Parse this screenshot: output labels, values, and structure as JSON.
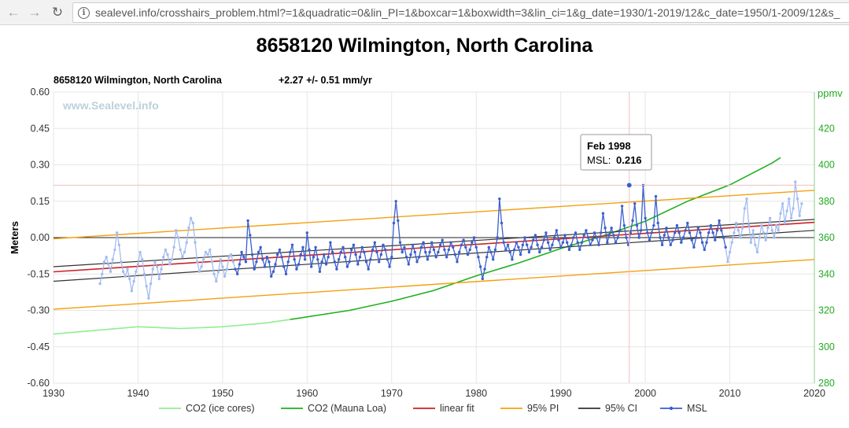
{
  "browser": {
    "back_glyph": "←",
    "forward_glyph": "→",
    "reload_glyph": "↻",
    "info_glyph": "i",
    "url": "sealevel.info/crosshairs_problem.html?=1&quadratic=0&lin_PI=1&boxcar=1&boxwidth=3&lin_ci=1&g_date=1930/1-2019/12&c_date=1950/1-2009/12&s_"
  },
  "page": {
    "title": "8658120 Wilmington, North Carolina"
  },
  "chart_data": {
    "type": "line",
    "title": "8658120 Wilmington, North Carolina",
    "subtitle": "+2.27 +/- 0.51 mm/yr",
    "watermark": "www.Sealevel.info",
    "xlabel": "",
    "ylabel": "Meters",
    "y2label": "ppmv",
    "xlim": [
      1930,
      2020
    ],
    "ylim": [
      -0.6,
      0.6
    ],
    "y2lim": [
      280,
      440
    ],
    "xticks": [
      "1930",
      "1940",
      "1950",
      "1960",
      "1970",
      "1980",
      "1990",
      "2000",
      "2010",
      "2020"
    ],
    "yticks": [
      "0.60",
      "0.45",
      "0.30",
      "0.15",
      "0.00",
      "-0.15",
      "-0.30",
      "-0.45",
      "-0.60"
    ],
    "y2ticks": [
      "420",
      "400",
      "380",
      "360",
      "340",
      "320",
      "300",
      "280"
    ],
    "grid": true,
    "legend_position": "bottom",
    "legend": [
      "CO2 (ice cores)",
      "CO2 (Mauna Loa)",
      "linear fit",
      "95% PI",
      "95% CI",
      "MSL"
    ],
    "colors": {
      "co2_ice": "#90ee90",
      "co2_mlo": "#1fb01f",
      "linear_fit": "#cc2222",
      "pi": "#f5a010",
      "ci": "#333333",
      "msl": "#3a5fcd",
      "msl_light": "#a4bcf0",
      "y2_axis": "#22aa22"
    },
    "series": [
      {
        "name": "CO2 (ice cores)",
        "axis": "y2",
        "x": [
          1930,
          1935,
          1940,
          1945,
          1950,
          1955,
          1958
        ],
        "values": [
          307,
          309,
          311,
          310,
          311,
          313,
          315
        ]
      },
      {
        "name": "CO2 (Mauna Loa)",
        "axis": "y2",
        "x": [
          1958,
          1965,
          1970,
          1975,
          1980,
          1985,
          1990,
          1995,
          2000,
          2005,
          2010,
          2015,
          2016
        ],
        "values": [
          315,
          320,
          325,
          331,
          339,
          346,
          354,
          361,
          369,
          380,
          389,
          401,
          404
        ]
      },
      {
        "name": "linear fit",
        "x": [
          1930,
          2020
        ],
        "values": [
          -0.141,
          0.063
        ]
      },
      {
        "name": "95% PI",
        "upper": [
          -0.005,
          0.195
        ],
        "lower": [
          -0.295,
          -0.09
        ],
        "x": [
          1930,
          2020
        ]
      },
      {
        "name": "95% CI",
        "upper": [
          -0.12,
          0.075
        ],
        "lower": [
          -0.18,
          0.03
        ],
        "x": [
          1930,
          2020
        ]
      },
      {
        "name": "MSL",
        "x_start": 1935.5,
        "x_step": 0.25,
        "values": [
          -0.19,
          -0.15,
          -0.1,
          -0.08,
          -0.11,
          -0.14,
          -0.09,
          -0.05,
          0.02,
          -0.03,
          -0.1,
          -0.14,
          -0.16,
          -0.13,
          -0.17,
          -0.22,
          -0.18,
          -0.14,
          -0.11,
          -0.06,
          -0.09,
          -0.15,
          -0.2,
          -0.25,
          -0.19,
          -0.13,
          -0.1,
          -0.12,
          -0.17,
          -0.13,
          -0.08,
          -0.05,
          -0.07,
          -0.11,
          -0.09,
          -0.04,
          0.03,
          0.0,
          -0.05,
          -0.08,
          -0.06,
          -0.02,
          0.04,
          0.08,
          0.06,
          -0.02,
          -0.1,
          -0.14,
          -0.12,
          -0.09,
          -0.06,
          -0.07,
          -0.05,
          -0.1,
          -0.15,
          -0.18,
          -0.14,
          -0.09,
          -0.12,
          -0.16,
          -0.13,
          -0.08,
          -0.07,
          -0.1,
          -0.13,
          -0.15,
          -0.11,
          -0.06,
          -0.08,
          -0.1,
          0.07,
          0.01,
          -0.07,
          -0.13,
          -0.1,
          -0.06,
          -0.04,
          -0.09,
          -0.12,
          -0.08,
          -0.1,
          -0.16,
          -0.14,
          -0.11,
          -0.07,
          -0.05,
          -0.08,
          -0.12,
          -0.15,
          -0.1,
          -0.06,
          -0.03,
          -0.09,
          -0.13,
          -0.11,
          -0.07,
          -0.04,
          -0.09,
          0.02,
          -0.05,
          -0.12,
          -0.08,
          -0.04,
          -0.09,
          -0.14,
          -0.1,
          -0.07,
          -0.11,
          -0.08,
          -0.02,
          -0.06,
          -0.1,
          -0.13,
          -0.09,
          -0.06,
          -0.04,
          -0.08,
          -0.12,
          -0.1,
          -0.05,
          -0.03,
          -0.07,
          -0.11,
          -0.08,
          -0.04,
          -0.06,
          -0.1,
          -0.13,
          -0.09,
          -0.05,
          -0.02,
          -0.06,
          -0.1,
          -0.07,
          -0.03,
          -0.05,
          -0.09,
          -0.12,
          -0.08,
          0.06,
          0.15,
          0.07,
          -0.02,
          -0.06,
          -0.04,
          -0.08,
          -0.11,
          -0.07,
          -0.03,
          -0.06,
          -0.1,
          -0.08,
          -0.04,
          -0.02,
          -0.06,
          -0.09,
          -0.06,
          -0.02,
          -0.05,
          -0.08,
          -0.06,
          -0.03,
          -0.01,
          -0.05,
          -0.08,
          -0.05,
          -0.02,
          -0.04,
          -0.07,
          -0.1,
          -0.06,
          -0.03,
          -0.01,
          -0.04,
          -0.07,
          -0.05,
          -0.02,
          0.0,
          -0.04,
          -0.08,
          -0.12,
          -0.17,
          -0.13,
          -0.08,
          -0.04,
          -0.06,
          -0.09,
          -0.05,
          0.0,
          0.16,
          0.06,
          -0.02,
          -0.05,
          -0.03,
          -0.06,
          -0.09,
          -0.05,
          -0.02,
          -0.04,
          -0.07,
          -0.03,
          0.0,
          -0.03,
          -0.06,
          -0.04,
          -0.01,
          0.01,
          -0.03,
          -0.06,
          -0.04,
          -0.01,
          0.02,
          -0.02,
          -0.05,
          -0.03,
          0.0,
          0.03,
          -0.01,
          -0.04,
          -0.02,
          0.01,
          -0.02,
          -0.05,
          -0.03,
          0.0,
          0.02,
          -0.02,
          -0.05,
          -0.02,
          0.01,
          0.03,
          0.0,
          -0.03,
          -0.01,
          0.02,
          0.0,
          -0.03,
          0.02,
          0.1,
          0.04,
          -0.02,
          0.01,
          0.04,
          0.01,
          -0.02,
          0.0,
          0.03,
          0.13,
          0.05,
          0.0,
          -0.03,
          0.02,
          0.07,
          0.14,
          0.05,
          0.0,
          0.03,
          0.216,
          0.08,
          0.02,
          -0.01,
          0.02,
          0.05,
          0.17,
          0.06,
          0.0,
          -0.03,
          0.01,
          0.04,
          0.0,
          -0.03,
          -0.01,
          0.02,
          0.05,
          0.02,
          -0.02,
          0.0,
          0.03,
          0.06,
          0.02,
          -0.01,
          -0.04,
          0.0,
          0.04,
          0.02,
          -0.02,
          -0.05,
          -0.02,
          0.02,
          0.05,
          0.02,
          -0.01,
          0.03,
          0.07,
          0.03,
          0.0,
          -0.04,
          -0.1,
          -0.06,
          -0.02,
          0.02,
          0.06,
          0.03,
          0.0,
          0.04,
          0.12,
          0.16,
          0.05,
          -0.02,
          0.03,
          -0.03,
          -0.06,
          0.0,
          0.05,
          0.02,
          -0.01,
          0.04,
          0.08,
          0.03,
          0.0,
          0.05,
          0.03,
          0.1,
          0.14,
          0.06,
          0.11,
          0.16,
          0.08,
          0.12,
          0.23,
          0.16,
          0.09,
          0.14
        ],
        "dark_range": [
          1951.5,
          2009.5
        ]
      }
    ],
    "tooltip": {
      "title": "Feb 1998",
      "label": "MSL:",
      "value": "0.216",
      "x": 1998.1,
      "y": 0.216
    }
  }
}
